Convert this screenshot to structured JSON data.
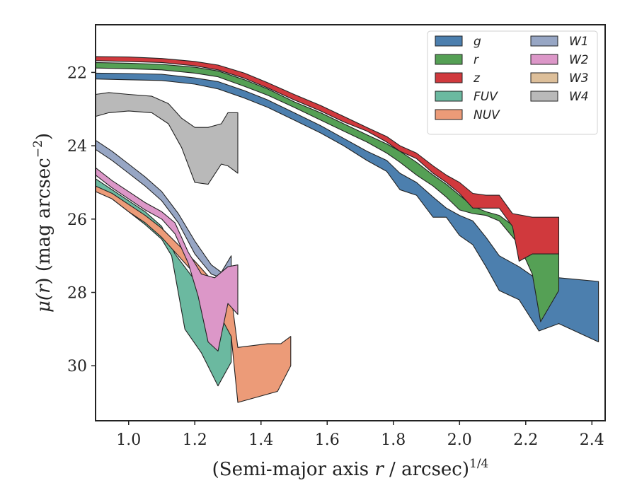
{
  "chart_data": {
    "type": "area",
    "xlabel": "(Semi-major axis r / arcsec)1/4",
    "ylabel": "μ(r) (mag arcsec−2)",
    "xlabel_parts": {
      "main": "(Semi-major axis ",
      "var": "r",
      "rest": " / arcsec)",
      "sup": "1/4"
    },
    "ylabel_parts": {
      "mu": "μ(",
      "var": "r",
      "mid": ") (mag arcsec",
      "sup": "−2",
      "end": ")"
    },
    "xlim": [
      0.9,
      2.44
    ],
    "ylim": [
      31.5,
      20.7
    ],
    "y_inverted": true,
    "xticks": [
      1.0,
      1.2,
      1.4,
      1.6,
      1.8,
      2.0,
      2.2,
      2.4
    ],
    "xtick_labels": [
      "1.0",
      "1.2",
      "1.4",
      "1.6",
      "1.8",
      "2.0",
      "2.2",
      "2.4"
    ],
    "yticks": [
      22,
      24,
      26,
      28,
      30
    ],
    "ytick_labels": [
      "22",
      "24",
      "26",
      "28",
      "30"
    ],
    "grid": false,
    "legend_position": "top-right",
    "legend_columns": 2,
    "series": [
      {
        "name": "g",
        "color": "#4c7fae",
        "upper": [
          [
            0.9,
            22.02
          ],
          [
            1.0,
            22.03
          ],
          [
            1.1,
            22.05
          ],
          [
            1.2,
            22.15
          ],
          [
            1.27,
            22.25
          ],
          [
            1.35,
            22.5
          ],
          [
            1.42,
            22.75
          ],
          [
            1.5,
            23.1
          ],
          [
            1.58,
            23.45
          ],
          [
            1.65,
            23.8
          ],
          [
            1.72,
            24.15
          ],
          [
            1.78,
            24.4
          ],
          [
            1.82,
            24.75
          ],
          [
            1.87,
            25.0
          ],
          [
            1.92,
            25.4
          ],
          [
            1.96,
            25.7
          ],
          [
            2.0,
            25.9
          ],
          [
            2.04,
            26.05
          ],
          [
            2.08,
            26.5
          ],
          [
            2.12,
            27.0
          ],
          [
            2.18,
            27.3
          ],
          [
            2.22,
            27.55
          ],
          [
            2.3,
            27.6
          ],
          [
            2.42,
            27.7
          ]
        ],
        "lower": [
          [
            0.9,
            22.18
          ],
          [
            1.0,
            22.2
          ],
          [
            1.1,
            22.22
          ],
          [
            1.2,
            22.32
          ],
          [
            1.27,
            22.45
          ],
          [
            1.35,
            22.7
          ],
          [
            1.42,
            22.95
          ],
          [
            1.5,
            23.3
          ],
          [
            1.58,
            23.65
          ],
          [
            1.65,
            24.0
          ],
          [
            1.72,
            24.4
          ],
          [
            1.78,
            24.7
          ],
          [
            1.82,
            25.2
          ],
          [
            1.87,
            25.35
          ],
          [
            1.92,
            25.95
          ],
          [
            1.96,
            25.95
          ],
          [
            2.0,
            26.45
          ],
          [
            2.04,
            26.7
          ],
          [
            2.08,
            27.3
          ],
          [
            2.12,
            27.95
          ],
          [
            2.18,
            28.2
          ],
          [
            2.24,
            29.05
          ],
          [
            2.3,
            28.85
          ],
          [
            2.42,
            29.35
          ]
        ]
      },
      {
        "name": "r",
        "color": "#55a055",
        "upper": [
          [
            0.9,
            21.73
          ],
          [
            1.0,
            21.75
          ],
          [
            1.1,
            21.78
          ],
          [
            1.2,
            21.86
          ],
          [
            1.27,
            21.96
          ],
          [
            1.35,
            22.2
          ],
          [
            1.42,
            22.45
          ],
          [
            1.5,
            22.8
          ],
          [
            1.58,
            23.1
          ],
          [
            1.65,
            23.4
          ],
          [
            1.72,
            23.7
          ],
          [
            1.78,
            23.95
          ],
          [
            1.82,
            24.15
          ],
          [
            1.87,
            24.45
          ],
          [
            1.92,
            24.8
          ],
          [
            1.96,
            25.05
          ],
          [
            2.0,
            25.35
          ],
          [
            2.04,
            25.65
          ],
          [
            2.08,
            25.8
          ],
          [
            2.12,
            25.9
          ],
          [
            2.18,
            26.3
          ],
          [
            2.22,
            26.8
          ],
          [
            2.26,
            26.9
          ],
          [
            2.3,
            26.95
          ]
        ],
        "lower": [
          [
            0.9,
            21.88
          ],
          [
            1.0,
            21.9
          ],
          [
            1.1,
            21.93
          ],
          [
            1.2,
            22.02
          ],
          [
            1.27,
            22.12
          ],
          [
            1.35,
            22.38
          ],
          [
            1.42,
            22.62
          ],
          [
            1.5,
            22.95
          ],
          [
            1.58,
            23.3
          ],
          [
            1.65,
            23.6
          ],
          [
            1.72,
            23.9
          ],
          [
            1.78,
            24.2
          ],
          [
            1.82,
            24.45
          ],
          [
            1.87,
            24.8
          ],
          [
            1.92,
            25.1
          ],
          [
            1.96,
            25.4
          ],
          [
            2.0,
            25.75
          ],
          [
            2.04,
            25.85
          ],
          [
            2.08,
            25.9
          ],
          [
            2.12,
            26.05
          ],
          [
            2.18,
            26.7
          ],
          [
            2.22,
            27.5
          ],
          [
            2.245,
            28.8
          ],
          [
            2.3,
            27.95
          ]
        ]
      },
      {
        "name": "z",
        "color": "#d0393d",
        "upper": [
          [
            0.9,
            21.57
          ],
          [
            1.0,
            21.58
          ],
          [
            1.1,
            21.62
          ],
          [
            1.2,
            21.7
          ],
          [
            1.27,
            21.8
          ],
          [
            1.35,
            22.02
          ],
          [
            1.42,
            22.28
          ],
          [
            1.5,
            22.6
          ],
          [
            1.58,
            22.9
          ],
          [
            1.65,
            23.2
          ],
          [
            1.72,
            23.5
          ],
          [
            1.78,
            23.75
          ],
          [
            1.82,
            24.0
          ],
          [
            1.87,
            24.2
          ],
          [
            1.92,
            24.55
          ],
          [
            1.96,
            24.8
          ],
          [
            2.0,
            25.0
          ],
          [
            2.04,
            25.3
          ],
          [
            2.08,
            25.35
          ],
          [
            2.12,
            25.35
          ],
          [
            2.16,
            25.85
          ],
          [
            2.22,
            25.95
          ],
          [
            2.3,
            25.95
          ]
        ],
        "lower": [
          [
            0.9,
            21.68
          ],
          [
            1.0,
            21.7
          ],
          [
            1.1,
            21.73
          ],
          [
            1.2,
            21.82
          ],
          [
            1.27,
            21.93
          ],
          [
            1.35,
            22.16
          ],
          [
            1.42,
            22.42
          ],
          [
            1.5,
            22.75
          ],
          [
            1.58,
            23.05
          ],
          [
            1.65,
            23.35
          ],
          [
            1.72,
            23.6
          ],
          [
            1.78,
            23.9
          ],
          [
            1.82,
            24.15
          ],
          [
            1.87,
            24.35
          ],
          [
            1.92,
            24.75
          ],
          [
            1.96,
            25.0
          ],
          [
            2.0,
            25.3
          ],
          [
            2.04,
            25.7
          ],
          [
            2.08,
            25.7
          ],
          [
            2.12,
            25.7
          ],
          [
            2.16,
            26.2
          ],
          [
            2.18,
            27.15
          ],
          [
            2.22,
            26.95
          ],
          [
            2.3,
            26.95
          ]
        ]
      },
      {
        "name": "FUV",
        "color": "#6bb9a0",
        "upper": [
          [
            0.9,
            24.9
          ],
          [
            0.95,
            25.2
          ],
          [
            1.0,
            25.5
          ],
          [
            1.05,
            25.8
          ],
          [
            1.1,
            26.2
          ],
          [
            1.14,
            26.95
          ],
          [
            1.19,
            27.55
          ],
          [
            1.24,
            28.0
          ],
          [
            1.28,
            28.4
          ],
          [
            1.3,
            27.95
          ],
          [
            1.31,
            28.2
          ]
        ],
        "lower": [
          [
            0.9,
            25.1
          ],
          [
            0.95,
            25.45
          ],
          [
            1.0,
            25.8
          ],
          [
            1.05,
            26.15
          ],
          [
            1.1,
            26.55
          ],
          [
            1.13,
            27.0
          ],
          [
            1.17,
            29.0
          ],
          [
            1.22,
            29.65
          ],
          [
            1.27,
            30.55
          ],
          [
            1.31,
            29.9
          ]
        ]
      },
      {
        "name": "NUV",
        "color": "#ec9b78",
        "upper": [
          [
            0.9,
            25.1
          ],
          [
            0.95,
            25.3
          ],
          [
            1.0,
            25.6
          ],
          [
            1.05,
            25.9
          ],
          [
            1.1,
            26.25
          ],
          [
            1.15,
            26.7
          ],
          [
            1.2,
            27.15
          ],
          [
            1.24,
            27.55
          ],
          [
            1.28,
            27.9
          ],
          [
            1.31,
            28.1
          ],
          [
            1.33,
            29.5
          ],
          [
            1.42,
            29.4
          ],
          [
            1.46,
            29.4
          ],
          [
            1.49,
            29.2
          ]
        ],
        "lower": [
          [
            0.9,
            25.25
          ],
          [
            0.95,
            25.45
          ],
          [
            1.0,
            25.8
          ],
          [
            1.05,
            26.1
          ],
          [
            1.1,
            26.5
          ],
          [
            1.15,
            27.0
          ],
          [
            1.2,
            27.5
          ],
          [
            1.24,
            28.1
          ],
          [
            1.28,
            28.7
          ],
          [
            1.31,
            29.2
          ],
          [
            1.33,
            31.0
          ],
          [
            1.45,
            30.7
          ],
          [
            1.49,
            30.0
          ]
        ]
      },
      {
        "name": "W1",
        "color": "#97a6c4",
        "upper": [
          [
            0.9,
            23.85
          ],
          [
            0.95,
            24.15
          ],
          [
            1.0,
            24.5
          ],
          [
            1.05,
            24.85
          ],
          [
            1.1,
            25.25
          ],
          [
            1.15,
            25.85
          ],
          [
            1.2,
            26.6
          ],
          [
            1.25,
            27.25
          ],
          [
            1.28,
            27.45
          ],
          [
            1.31,
            27.0
          ]
        ],
        "lower": [
          [
            0.9,
            24.1
          ],
          [
            0.95,
            24.4
          ],
          [
            1.0,
            24.75
          ],
          [
            1.05,
            25.1
          ],
          [
            1.1,
            25.5
          ],
          [
            1.15,
            26.1
          ],
          [
            1.2,
            26.95
          ],
          [
            1.25,
            27.5
          ],
          [
            1.28,
            27.6
          ],
          [
            1.31,
            27.3
          ]
        ]
      },
      {
        "name": "W2",
        "color": "#dc97c8",
        "upper": [
          [
            0.9,
            24.6
          ],
          [
            0.95,
            24.95
          ],
          [
            1.0,
            25.25
          ],
          [
            1.05,
            25.55
          ],
          [
            1.1,
            25.8
          ],
          [
            1.14,
            26.1
          ],
          [
            1.18,
            26.9
          ],
          [
            1.22,
            27.5
          ],
          [
            1.26,
            27.6
          ],
          [
            1.3,
            27.3
          ],
          [
            1.33,
            27.25
          ]
        ],
        "lower": [
          [
            0.9,
            24.8
          ],
          [
            0.95,
            25.15
          ],
          [
            1.0,
            25.45
          ],
          [
            1.05,
            25.75
          ],
          [
            1.1,
            26.0
          ],
          [
            1.14,
            26.4
          ],
          [
            1.18,
            27.2
          ],
          [
            1.21,
            28.1
          ],
          [
            1.24,
            29.35
          ],
          [
            1.27,
            29.6
          ],
          [
            1.3,
            28.3
          ],
          [
            1.33,
            28.6
          ]
        ]
      },
      {
        "name": "W3",
        "color": "#ddbf9a",
        "upper": [],
        "lower": []
      },
      {
        "name": "W4",
        "color": "#b9b9b9",
        "upper": [
          [
            0.9,
            22.6
          ],
          [
            0.94,
            22.55
          ],
          [
            1.0,
            22.6
          ],
          [
            1.07,
            22.65
          ],
          [
            1.12,
            22.85
          ],
          [
            1.16,
            23.25
          ],
          [
            1.2,
            23.5
          ],
          [
            1.24,
            23.5
          ],
          [
            1.28,
            23.4
          ],
          [
            1.3,
            23.1
          ],
          [
            1.33,
            23.1
          ]
        ],
        "lower": [
          [
            0.9,
            23.2
          ],
          [
            0.94,
            23.1
          ],
          [
            1.0,
            23.05
          ],
          [
            1.07,
            23.1
          ],
          [
            1.12,
            23.4
          ],
          [
            1.16,
            24.05
          ],
          [
            1.2,
            25.0
          ],
          [
            1.24,
            25.05
          ],
          [
            1.28,
            24.5
          ],
          [
            1.3,
            24.55
          ],
          [
            1.33,
            24.75
          ]
        ]
      }
    ]
  }
}
